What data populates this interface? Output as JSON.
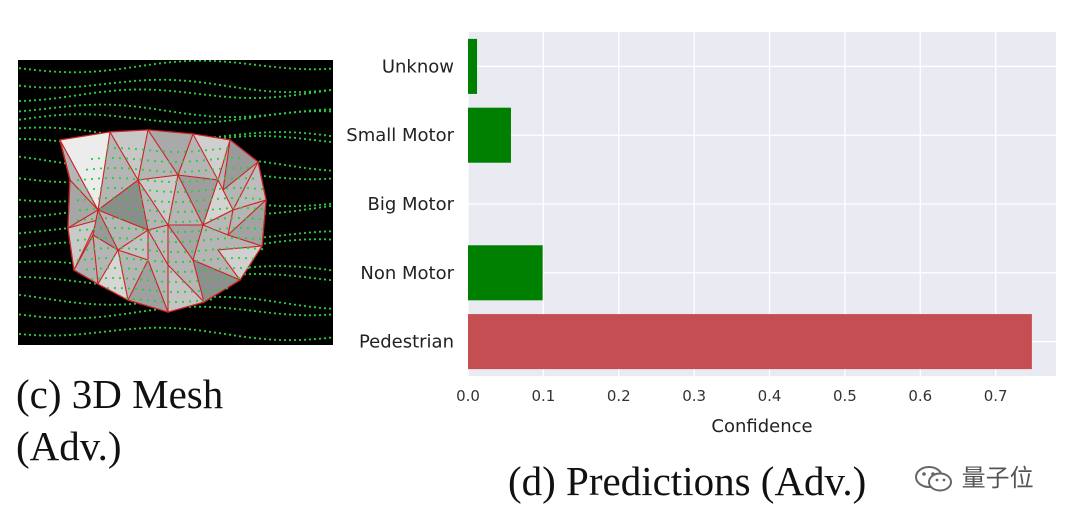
{
  "captions": {
    "mesh_line1": "(c) 3D Mesh",
    "mesh_line2": "(Adv.)",
    "predictions": "(d) Predictions (Adv.)"
  },
  "watermark": {
    "text": "量子位",
    "icon": "wechat-logo-icon"
  },
  "mesh_image": {
    "background": "#000000",
    "point_color": "#2ecc40",
    "edge_color": "#cc2222"
  },
  "chart_data": {
    "type": "bar",
    "orientation": "horizontal",
    "categories": [
      "Unknow",
      "Small Motor",
      "Big Motor",
      "Non Motor",
      "Pedestrian"
    ],
    "values": [
      0.012,
      0.057,
      0.0,
      0.099,
      0.748
    ],
    "colors": [
      "#008000",
      "#008000",
      "#008000",
      "#008000",
      "#c44e52"
    ],
    "xlabel": "Confidence",
    "ylabel": "",
    "xlim": [
      0.0,
      0.78
    ],
    "xticks": [
      "0.0",
      "0.1",
      "0.2",
      "0.3",
      "0.4",
      "0.5",
      "0.6",
      "0.7"
    ],
    "grid": true,
    "plot_background": "#eaeaf2"
  }
}
